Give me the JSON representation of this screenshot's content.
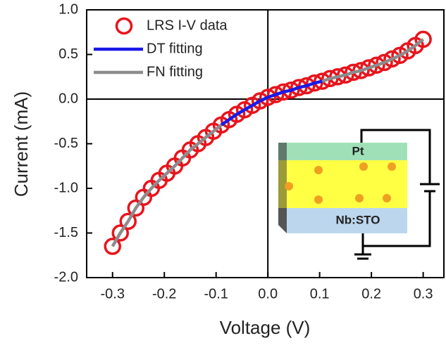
{
  "chart_data": {
    "type": "scatter-line",
    "x_label": "Voltage (V)",
    "y_label": "Current (mA)",
    "xlim": [
      -0.35,
      0.34
    ],
    "ylim": [
      -2.0,
      1.0
    ],
    "xticks": [
      -0.3,
      -0.2,
      -0.1,
      {
        "value": 0,
        "label": "0.0"
      },
      0.1,
      0.2,
      0.3
    ],
    "yticks": [
      {
        "value": -2,
        "label": "-2.0"
      },
      -1.5,
      {
        "value": -1,
        "label": "-1.0"
      },
      -0.5,
      {
        "value": 0,
        "label": "0.0"
      },
      0.5,
      {
        "value": 1,
        "label": "1.0"
      }
    ],
    "series": [
      {
        "name": "LRS I-V data",
        "color": "#e8141c",
        "style": "circle",
        "x": [
          -0.3,
          -0.285,
          -0.27,
          -0.255,
          -0.24,
          -0.225,
          -0.21,
          -0.195,
          -0.18,
          -0.165,
          -0.15,
          -0.135,
          -0.12,
          -0.105,
          -0.09,
          -0.075,
          -0.06,
          -0.045,
          -0.03,
          -0.015,
          0,
          0.015,
          0.03,
          0.045,
          0.06,
          0.075,
          0.09,
          0.105,
          0.12,
          0.135,
          0.15,
          0.165,
          0.18,
          0.195,
          0.21,
          0.225,
          0.24,
          0.255,
          0.27,
          0.285,
          0.3
        ],
        "values": [
          -1.65,
          -1.5,
          -1.37,
          -1.22,
          -1.1,
          -1.0,
          -0.91,
          -0.83,
          -0.75,
          -0.66,
          -0.57,
          -0.5,
          -0.43,
          -0.36,
          -0.29,
          -0.23,
          -0.17,
          -0.12,
          -0.07,
          -0.02,
          0.02,
          0.05,
          0.08,
          0.1,
          0.13,
          0.15,
          0.18,
          0.2,
          0.23,
          0.25,
          0.27,
          0.3,
          0.32,
          0.35,
          0.38,
          0.41,
          0.45,
          0.49,
          0.54,
          0.6,
          0.67
        ]
      },
      {
        "name": "DT fitting",
        "color": "#1a1ae6",
        "style": "line",
        "x": [
          -0.09,
          -0.075,
          -0.06,
          -0.045,
          -0.03,
          -0.015,
          0,
          0.015,
          0.03,
          0.045,
          0.06,
          0.075,
          0.09,
          0.105
        ],
        "values": [
          -0.29,
          -0.23,
          -0.17,
          -0.12,
          -0.07,
          -0.02,
          0.02,
          0.05,
          0.08,
          0.1,
          0.13,
          0.15,
          0.18,
          0.2
        ]
      },
      {
        "name": "FN fitting",
        "color": "#8c8c8c",
        "style": "line",
        "x": [
          -0.3,
          -0.285,
          -0.27,
          -0.255,
          -0.24,
          -0.225,
          -0.21,
          -0.195,
          -0.18,
          -0.165,
          -0.15,
          -0.135,
          -0.12,
          -0.105,
          -0.09,
          -0.075,
          -0.06,
          -0.045,
          -0.03,
          -0.015,
          0,
          0.015,
          0.03,
          0.045,
          0.06,
          0.075,
          0.09,
          0.105,
          0.12,
          0.135,
          0.15,
          0.165,
          0.18,
          0.195,
          0.21,
          0.225,
          0.24,
          0.255,
          0.27,
          0.285,
          0.3
        ],
        "values": [
          -1.65,
          -1.5,
          -1.37,
          -1.22,
          -1.1,
          -1.0,
          -0.91,
          -0.83,
          -0.75,
          -0.66,
          -0.57,
          -0.5,
          -0.43,
          -0.36,
          -0.29,
          null,
          null,
          null,
          null,
          null,
          null,
          null,
          null,
          null,
          null,
          null,
          null,
          0.2,
          0.23,
          0.25,
          0.27,
          0.3,
          0.32,
          0.35,
          0.38,
          0.41,
          0.45,
          0.49,
          0.54,
          0.6,
          0.67
        ]
      }
    ],
    "inset_labels": [
      "Pt",
      "Nb:STO"
    ]
  }
}
